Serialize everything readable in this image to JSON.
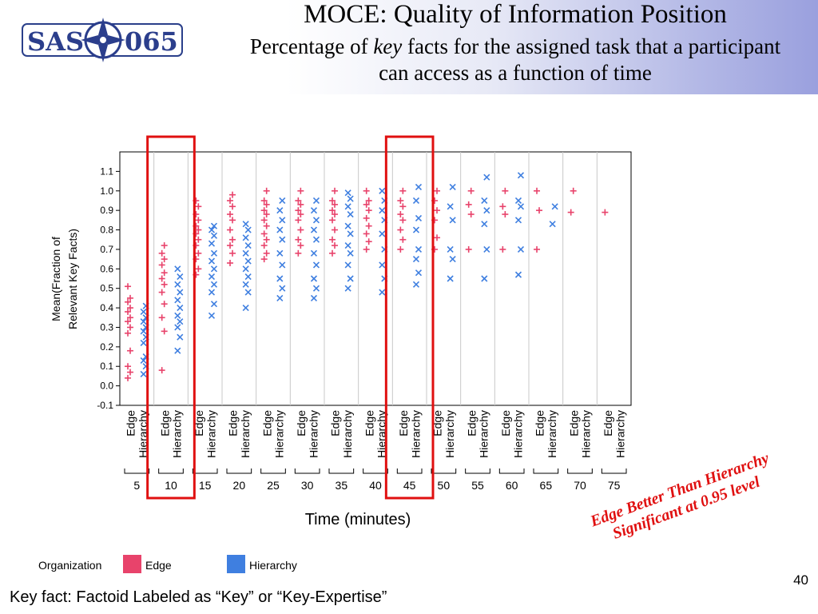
{
  "header": {
    "logo_text_left": "SAS",
    "logo_text_right": "065",
    "title": "MOCE: Quality of Information Position",
    "subtitle_pre": "Percentage of ",
    "subtitle_em": "key",
    "subtitle_post": " facts for the assigned task that a participant can access as a function of time"
  },
  "colors": {
    "edge": "#e8436b",
    "hierarchy": "#3f7fe0",
    "highlight": "#e01010"
  },
  "chart_data": {
    "type": "scatter",
    "title": "",
    "xlabel": "Time (minutes)",
    "ylabel_line1": "Mean(Fraction of",
    "ylabel_line2": "Relevant Key Facts)",
    "ylim": [
      -0.1,
      1.2
    ],
    "yticks": [
      "-0.1",
      "0.0",
      "0.1",
      "0.2",
      "0.3",
      "0.4",
      "0.5",
      "0.6",
      "0.7",
      "0.8",
      "0.9",
      "1.0",
      "1.1"
    ],
    "times": [
      "5",
      "10",
      "15",
      "20",
      "25",
      "30",
      "35",
      "40",
      "45",
      "50",
      "55",
      "60",
      "65",
      "70",
      "75"
    ],
    "groups": [
      "Edge",
      "Hierarchy"
    ],
    "legend": {
      "title": "Organization",
      "items": [
        "Edge",
        "Hierarchy"
      ],
      "placement": "bottom-left"
    },
    "highlighted_times": [
      "10",
      "45"
    ],
    "series": [
      {
        "group": "Edge",
        "marker": "+",
        "by_time": [
          [
            0.04,
            0.07,
            0.1,
            0.18,
            0.27,
            0.3,
            0.33,
            0.35,
            0.38,
            0.4,
            0.43,
            0.45,
            0.51
          ],
          [
            0.08,
            0.28,
            0.35,
            0.42,
            0.48,
            0.52,
            0.55,
            0.58,
            0.62,
            0.65,
            0.68,
            0.72
          ],
          [
            0.57,
            0.6,
            0.65,
            0.68,
            0.72,
            0.75,
            0.78,
            0.8,
            0.82,
            0.85,
            0.88,
            0.92,
            0.95
          ],
          [
            0.63,
            0.68,
            0.72,
            0.75,
            0.8,
            0.85,
            0.88,
            0.92,
            0.95,
            0.98
          ],
          [
            0.65,
            0.68,
            0.72,
            0.75,
            0.78,
            0.82,
            0.85,
            0.88,
            0.9,
            0.93,
            0.95,
            1.0
          ],
          [
            0.68,
            0.72,
            0.75,
            0.8,
            0.85,
            0.88,
            0.9,
            0.93,
            0.95,
            1.0
          ],
          [
            0.68,
            0.72,
            0.75,
            0.8,
            0.85,
            0.88,
            0.9,
            0.93,
            0.95,
            1.0
          ],
          [
            0.7,
            0.74,
            0.78,
            0.82,
            0.86,
            0.9,
            0.93,
            0.95,
            1.0
          ],
          [
            0.7,
            0.75,
            0.8,
            0.85,
            0.88,
            0.92,
            0.95,
            1.0
          ],
          [
            0.7,
            0.76,
            0.85,
            0.9,
            0.95,
            1.0
          ],
          [
            0.7,
            0.88,
            0.93,
            1.0
          ],
          [
            0.7,
            0.88,
            0.92,
            1.0
          ],
          [
            0.7,
            0.9,
            1.0
          ],
          [
            0.89,
            1.0
          ],
          [
            0.89
          ]
        ]
      },
      {
        "group": "Hierarchy",
        "marker": "x",
        "by_time": [
          [
            0.06,
            0.1,
            0.13,
            0.15,
            0.22,
            0.25,
            0.28,
            0.3,
            0.33,
            0.35,
            0.38,
            0.41
          ],
          [
            0.18,
            0.25,
            0.3,
            0.33,
            0.36,
            0.4,
            0.44,
            0.48,
            0.52,
            0.56,
            0.6
          ],
          [
            0.36,
            0.42,
            0.48,
            0.52,
            0.56,
            0.6,
            0.64,
            0.68,
            0.73,
            0.77,
            0.8,
            0.82
          ],
          [
            0.4,
            0.48,
            0.52,
            0.56,
            0.6,
            0.64,
            0.68,
            0.72,
            0.76,
            0.8,
            0.83
          ],
          [
            0.45,
            0.5,
            0.55,
            0.62,
            0.68,
            0.75,
            0.8,
            0.85,
            0.9,
            0.95
          ],
          [
            0.45,
            0.5,
            0.55,
            0.62,
            0.68,
            0.75,
            0.8,
            0.85,
            0.9,
            0.95
          ],
          [
            0.5,
            0.55,
            0.62,
            0.68,
            0.72,
            0.78,
            0.82,
            0.88,
            0.92,
            0.96,
            0.99
          ],
          [
            0.48,
            0.55,
            0.62,
            0.7,
            0.78,
            0.85,
            0.9,
            0.95,
            1.0
          ],
          [
            0.52,
            0.58,
            0.65,
            0.7,
            0.8,
            0.86,
            0.95,
            1.02
          ],
          [
            0.55,
            0.65,
            0.7,
            0.85,
            0.92,
            1.02
          ],
          [
            0.55,
            0.7,
            0.83,
            0.9,
            0.95,
            1.07
          ],
          [
            0.57,
            0.7,
            0.85,
            0.92,
            0.95,
            1.08
          ],
          [
            0.83,
            0.92
          ],
          [],
          []
        ]
      }
    ]
  },
  "annotation": {
    "line1": "Edge Better Than Hierarchy",
    "line2": "Significant at 0.95 level"
  },
  "footnote": "Key fact:  Factoid Labeled as “Key” or “Key-Expertise”",
  "page_number": "40"
}
